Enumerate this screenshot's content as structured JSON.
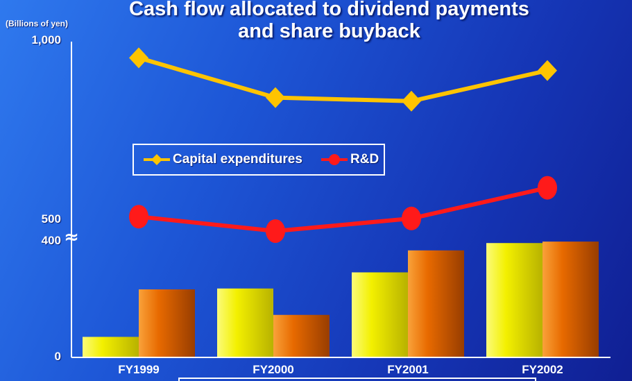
{
  "title_line1": "Cash flow allocated to dividend payments",
  "title_line2": "and share buyback",
  "unit_label": "(Billions of yen)",
  "chart_data": {
    "type": "bar",
    "title": "Cash flow allocated to dividend payments and share buyback",
    "ylabel": "(Billions of yen)",
    "categories": [
      "FY1999",
      "FY2000",
      "FY2001",
      "FY2002"
    ],
    "yticks": [
      "1,000",
      "500",
      "400",
      "0"
    ],
    "axis_break": "≈",
    "ylim": [
      0,
      1000
    ],
    "bar_series": [
      {
        "color": "#f3f000",
        "values": [
          70,
          235,
          290,
          390
        ]
      },
      {
        "color": "#e86a00",
        "values": [
          232,
          145,
          365,
          395
        ]
      }
    ],
    "line_series": [
      {
        "name": "Capital expenditures",
        "color": "#ffc400",
        "marker": "diamond",
        "values": [
          955,
          845,
          835,
          920
        ]
      },
      {
        "name": "R&D",
        "color": "#ff1a1a",
        "marker": "circle",
        "values": [
          515,
          475,
          510,
          595
        ]
      }
    ],
    "legend_position": "center"
  }
}
